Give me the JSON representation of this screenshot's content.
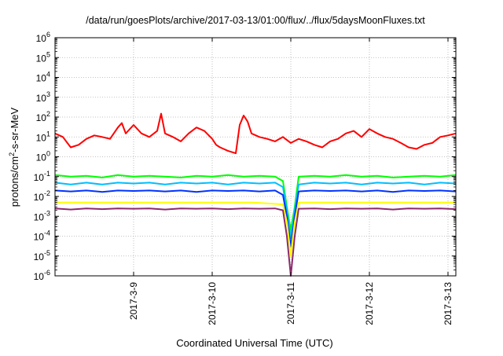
{
  "chart_data": {
    "type": "line",
    "title": "/data/run/goesPlots/archive/2017-03-13/01:00/flux/../flux/5daysMoonFluxes.txt",
    "xlabel": "Coordinated Universal Time (UTC)",
    "ylabel": {
      "prefix": "protons/cm",
      "sup": "2",
      "suffix": "-s-sr-MeV"
    },
    "y_scale": "log",
    "ylim": [
      1e-06,
      1000000.0
    ],
    "xlim": [
      8.0,
      13.1
    ],
    "x_unit_note": "x values are day-of-month in March 2017 (UTC)",
    "grid": true,
    "x_ticks": [
      {
        "value": 9,
        "label": "2017-3-9"
      },
      {
        "value": 10,
        "label": "2017-3-10"
      },
      {
        "value": 11,
        "label": "2017-3-11"
      },
      {
        "value": 12,
        "label": "2017-3-12"
      },
      {
        "value": 13,
        "label": "2017-3-13"
      }
    ],
    "y_ticks": [
      {
        "exp": -6,
        "base": "10",
        "sup": "-6"
      },
      {
        "exp": -5,
        "base": "10",
        "sup": "-5"
      },
      {
        "exp": -4,
        "base": "10",
        "sup": "-4"
      },
      {
        "exp": -3,
        "base": "10",
        "sup": "-3"
      },
      {
        "exp": -2,
        "base": "10",
        "sup": "-2"
      },
      {
        "exp": -1,
        "base": "10",
        "sup": "-1"
      },
      {
        "exp": 0,
        "base": "10",
        "sup": "0"
      },
      {
        "exp": 1,
        "base": "10",
        "sup": "1"
      },
      {
        "exp": 2,
        "base": "10",
        "sup": "2"
      },
      {
        "exp": 3,
        "base": "10",
        "sup": "3"
      },
      {
        "exp": 4,
        "base": "10",
        "sup": "4"
      },
      {
        "exp": 5,
        "base": "10",
        "sup": "5"
      },
      {
        "exp": 6,
        "base": "10",
        "sup": "6"
      }
    ],
    "series": [
      {
        "color": "#ff0000",
        "x": [
          8.0,
          8.1,
          8.2,
          8.3,
          8.4,
          8.5,
          8.6,
          8.7,
          8.8,
          8.85,
          8.9,
          9.0,
          9.1,
          9.2,
          9.3,
          9.35,
          9.4,
          9.5,
          9.6,
          9.7,
          9.8,
          9.9,
          10.0,
          10.05,
          10.1,
          10.2,
          10.3,
          10.35,
          10.4,
          10.45,
          10.5,
          10.6,
          10.7,
          10.8,
          10.9,
          11.0,
          11.1,
          11.2,
          11.3,
          11.4,
          11.5,
          11.6,
          11.7,
          11.8,
          11.9,
          12.0,
          12.1,
          12.2,
          12.3,
          12.4,
          12.5,
          12.6,
          12.7,
          12.8,
          12.9,
          13.0,
          13.1
        ],
        "y": [
          15,
          10,
          3,
          4,
          8,
          12,
          10,
          8,
          30,
          50,
          15,
          40,
          15,
          10,
          20,
          150,
          15,
          10,
          6,
          15,
          30,
          20,
          8,
          4,
          3,
          2,
          1.5,
          40,
          120,
          60,
          15,
          10,
          8,
          6,
          10,
          5,
          8,
          6,
          4,
          3,
          6,
          8,
          15,
          20,
          10,
          25,
          15,
          10,
          8,
          5,
          3,
          2.5,
          4,
          5,
          10,
          12,
          15
        ]
      },
      {
        "color": "#00ff00",
        "x": [
          8.0,
          8.2,
          8.4,
          8.6,
          8.8,
          9.0,
          9.2,
          9.4,
          9.6,
          9.8,
          10.0,
          10.2,
          10.4,
          10.6,
          10.8,
          10.9,
          10.95,
          11.0,
          11.05,
          11.1,
          11.3,
          11.5,
          11.7,
          11.9,
          12.1,
          12.3,
          12.5,
          12.7,
          12.9,
          13.1
        ],
        "y": [
          0.12,
          0.1,
          0.11,
          0.09,
          0.12,
          0.1,
          0.11,
          0.1,
          0.09,
          0.11,
          0.1,
          0.12,
          0.1,
          0.11,
          0.1,
          0.06,
          0.003,
          0.0002,
          0.003,
          0.1,
          0.11,
          0.1,
          0.12,
          0.1,
          0.11,
          0.09,
          0.1,
          0.11,
          0.1,
          0.12
        ]
      },
      {
        "color": "#00bfff",
        "x": [
          8.0,
          8.2,
          8.4,
          8.6,
          8.8,
          9.0,
          9.2,
          9.4,
          9.6,
          9.8,
          10.0,
          10.2,
          10.4,
          10.6,
          10.8,
          10.9,
          10.95,
          11.0,
          11.05,
          11.1,
          11.3,
          11.5,
          11.7,
          11.9,
          12.1,
          12.3,
          12.5,
          12.7,
          12.9,
          13.1
        ],
        "y": [
          0.05,
          0.04,
          0.05,
          0.04,
          0.05,
          0.045,
          0.05,
          0.04,
          0.05,
          0.045,
          0.05,
          0.04,
          0.05,
          0.045,
          0.05,
          0.03,
          0.002,
          8e-05,
          0.002,
          0.04,
          0.05,
          0.045,
          0.05,
          0.04,
          0.05,
          0.045,
          0.05,
          0.04,
          0.05,
          0.045
        ]
      },
      {
        "color": "#0033ff",
        "x": [
          8.0,
          8.2,
          8.4,
          8.6,
          8.8,
          9.0,
          9.2,
          9.4,
          9.6,
          9.8,
          10.0,
          10.2,
          10.4,
          10.6,
          10.8,
          10.9,
          10.95,
          11.0,
          11.05,
          11.1,
          11.3,
          11.5,
          11.7,
          11.9,
          12.1,
          12.3,
          12.5,
          12.7,
          12.9,
          13.1
        ],
        "y": [
          0.02,
          0.018,
          0.02,
          0.017,
          0.02,
          0.019,
          0.02,
          0.018,
          0.02,
          0.017,
          0.02,
          0.019,
          0.02,
          0.018,
          0.02,
          0.012,
          0.001,
          3e-05,
          0.001,
          0.018,
          0.02,
          0.019,
          0.02,
          0.018,
          0.02,
          0.017,
          0.02,
          0.019,
          0.02,
          0.018
        ]
      },
      {
        "color": "#ffff00",
        "x": [
          8.0,
          8.5,
          9.0,
          9.5,
          10.0,
          10.5,
          10.9,
          10.95,
          11.0,
          11.05,
          11.1,
          11.5,
          12.0,
          12.5,
          13.0,
          13.1
        ],
        "y": [
          0.005,
          0.005,
          0.005,
          0.005,
          0.005,
          0.005,
          0.004,
          0.0005,
          1e-05,
          0.0005,
          0.005,
          0.005,
          0.005,
          0.005,
          0.005,
          0.005
        ]
      },
      {
        "color": "#8b2a6b",
        "x": [
          8.0,
          8.2,
          8.4,
          8.6,
          8.8,
          9.0,
          9.2,
          9.4,
          9.6,
          9.8,
          10.0,
          10.2,
          10.4,
          10.6,
          10.8,
          10.9,
          10.95,
          11.0,
          11.05,
          11.1,
          11.3,
          11.5,
          11.7,
          11.9,
          12.1,
          12.3,
          12.5,
          12.7,
          12.9,
          13.1
        ],
        "y": [
          0.0025,
          0.0022,
          0.0025,
          0.0023,
          0.0025,
          0.0024,
          0.0025,
          0.0022,
          0.0025,
          0.0024,
          0.0025,
          0.0023,
          0.0025,
          0.0024,
          0.0025,
          0.002,
          0.0001,
          1e-06,
          0.0001,
          0.0024,
          0.0025,
          0.0023,
          0.0025,
          0.0024,
          0.0025,
          0.0022,
          0.0025,
          0.0024,
          0.0025,
          0.0023
        ]
      }
    ]
  }
}
